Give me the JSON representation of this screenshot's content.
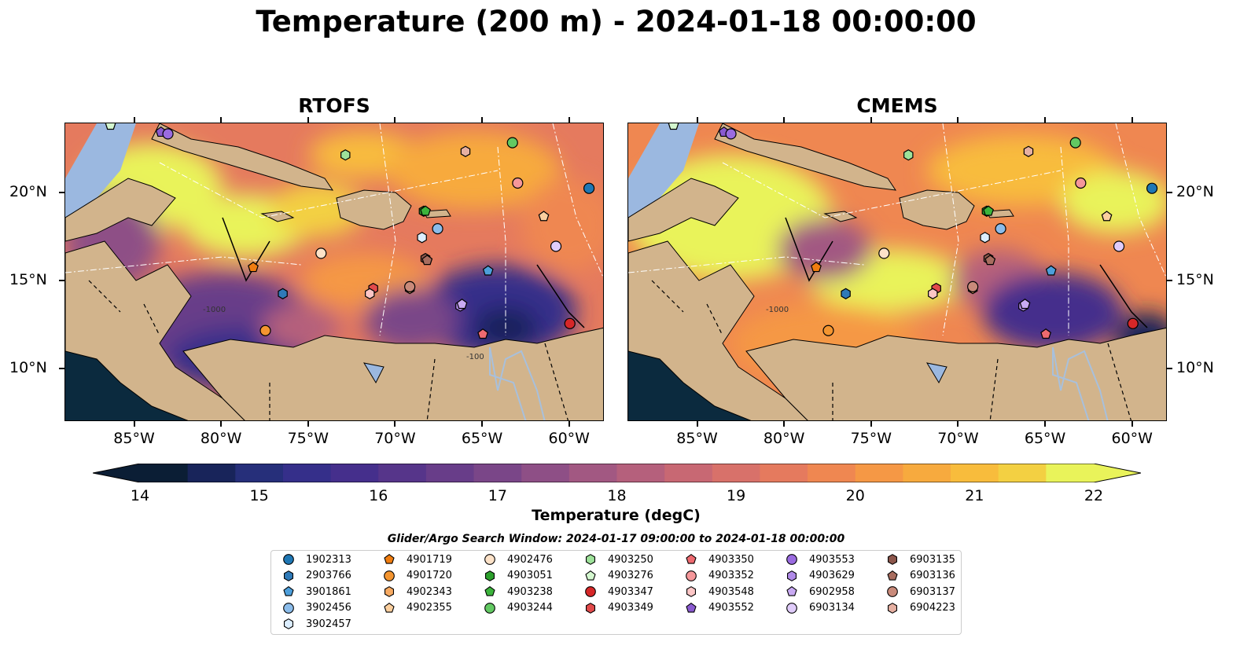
{
  "title": "Temperature (200 m) - 2024-01-18 00:00:00",
  "panels": [
    {
      "title": "RTOFS"
    },
    {
      "title": "CMEMS"
    }
  ],
  "axes": {
    "lon_labels": [
      "85°W",
      "80°W",
      "75°W",
      "70°W",
      "65°W",
      "60°W"
    ],
    "lat_labels": [
      "20°N",
      "15°N",
      "10°N"
    ],
    "lon_range": [
      -89,
      -58
    ],
    "lat_range": [
      7,
      24
    ]
  },
  "contour_labels": [
    "-100",
    "-1000",
    "-100",
    "-100"
  ],
  "colorbar": {
    "label": "Temperature (degC)",
    "tick_labels": [
      "14",
      "15",
      "16",
      "17",
      "18",
      "19",
      "20",
      "21",
      "22"
    ],
    "range": [
      14,
      22
    ],
    "colors": [
      "#0b1e35",
      "#18245a",
      "#262f7a",
      "#352f8a",
      "#452f8c",
      "#56358a",
      "#683d89",
      "#7a4688",
      "#8e4f86",
      "#a25882",
      "#b5607c",
      "#c86873",
      "#d8716a",
      "#e57a5e",
      "#ef8751",
      "#f59845",
      "#f7aa3e",
      "#f8bc3c",
      "#f3d042",
      "#e9f35a"
    ]
  },
  "search_window": "Glider/Argo Search Window: 2024-01-17 09:00:00 to 2024-01-18 00:00:00",
  "colors": {
    "land": "#d2b48c",
    "shelf": "#9bb8e0",
    "deep_pacific": "#0b2a3e",
    "river": "#a8c0dc"
  },
  "legend": [
    {
      "id": "1902313",
      "marker": "circle",
      "color": "#1f77b4"
    },
    {
      "id": "2903766",
      "marker": "hexagon",
      "color": "#2f7ab8"
    },
    {
      "id": "3901861",
      "marker": "pentagon",
      "color": "#4d9fdb"
    },
    {
      "id": "3902456",
      "marker": "circle",
      "color": "#8bbcea"
    },
    {
      "id": "3902457",
      "marker": "hexagon",
      "color": "#dceeff"
    },
    {
      "id": "4901719",
      "marker": "pentagon",
      "color": "#f07d10"
    },
    {
      "id": "4901720",
      "marker": "circle",
      "color": "#f49530"
    },
    {
      "id": "4902343",
      "marker": "hexagon",
      "color": "#f7aa62"
    },
    {
      "id": "4902355",
      "marker": "pentagon",
      "color": "#fbcf9e"
    },
    {
      "id": "4902476",
      "marker": "circle",
      "color": "#fde2c8"
    },
    {
      "id": "4903051",
      "marker": "hexagon",
      "color": "#2ca02c"
    },
    {
      "id": "4903238",
      "marker": "pentagon",
      "color": "#3cb43c"
    },
    {
      "id": "4903244",
      "marker": "circle",
      "color": "#62c962"
    },
    {
      "id": "4903250",
      "marker": "hexagon",
      "color": "#9ee29a"
    },
    {
      "id": "4903276",
      "marker": "pentagon",
      "color": "#d4f7cf"
    },
    {
      "id": "4903347",
      "marker": "circle",
      "color": "#d62728"
    },
    {
      "id": "4903349",
      "marker": "hexagon",
      "color": "#e24a4b"
    },
    {
      "id": "4903350",
      "marker": "pentagon",
      "color": "#ee6a70"
    },
    {
      "id": "4903352",
      "marker": "circle",
      "color": "#f5979a"
    },
    {
      "id": "4903548",
      "marker": "hexagon",
      "color": "#fcc6c6"
    },
    {
      "id": "4903552",
      "marker": "pentagon",
      "color": "#8a5ad0"
    },
    {
      "id": "4903553",
      "marker": "circle",
      "color": "#9a6be0"
    },
    {
      "id": "4903629",
      "marker": "hexagon",
      "color": "#b08ae8"
    },
    {
      "id": "6902958",
      "marker": "pentagon",
      "color": "#c9aaf3"
    },
    {
      "id": "6903134",
      "marker": "circle",
      "color": "#e0ccfa"
    },
    {
      "id": "6903135",
      "marker": "hexagon",
      "color": "#8c564b"
    },
    {
      "id": "6903136",
      "marker": "pentagon",
      "color": "#a86d5f"
    },
    {
      "id": "6903137",
      "marker": "circle",
      "color": "#c98a7a"
    },
    {
      "id": "6904223",
      "marker": "hexagon",
      "color": "#e6b0a2"
    }
  ],
  "float_positions": [
    {
      "id": "1902313",
      "lon": -58.9,
      "lat": 20.3
    },
    {
      "id": "2903766",
      "lon": -76.5,
      "lat": 14.3
    },
    {
      "id": "3901861",
      "lon": -64.7,
      "lat": 15.6
    },
    {
      "id": "3902456",
      "lon": -67.6,
      "lat": 18.0
    },
    {
      "id": "3902457",
      "lon": -68.5,
      "lat": 17.5
    },
    {
      "id": "4901719",
      "lon": -78.2,
      "lat": 15.8
    },
    {
      "id": "4901720",
      "lon": -77.5,
      "lat": 12.2
    },
    {
      "id": "4902343",
      "lon": -69.2,
      "lat": 14.6
    },
    {
      "id": "4902355",
      "lon": -61.5,
      "lat": 18.7
    },
    {
      "id": "4902476",
      "lon": -74.3,
      "lat": 16.6
    },
    {
      "id": "4903051",
      "lon": -68.4,
      "lat": 19.0
    },
    {
      "id": "4903238",
      "lon": -68.3,
      "lat": 19.0
    },
    {
      "id": "4903244",
      "lon": -63.3,
      "lat": 22.9
    },
    {
      "id": "4903250",
      "lon": -72.9,
      "lat": 22.2
    },
    {
      "id": "4903276",
      "lon": -86.4,
      "lat": 23.9
    },
    {
      "id": "4903347",
      "lon": -60.0,
      "lat": 12.6
    },
    {
      "id": "4903349",
      "lon": -71.3,
      "lat": 14.6
    },
    {
      "id": "4903350",
      "lon": -65.0,
      "lat": 12.0
    },
    {
      "id": "4903352",
      "lon": -63.0,
      "lat": 20.6
    },
    {
      "id": "4903548",
      "lon": -71.5,
      "lat": 14.3
    },
    {
      "id": "4903552",
      "lon": -83.5,
      "lat": 23.5
    },
    {
      "id": "4903553",
      "lon": -83.1,
      "lat": 23.4
    },
    {
      "id": "4903629",
      "lon": -66.3,
      "lat": 13.6
    },
    {
      "id": "6902958",
      "lon": -66.2,
      "lat": 13.7
    },
    {
      "id": "6903134",
      "lon": -60.8,
      "lat": 17.0
    },
    {
      "id": "6903135",
      "lon": -68.3,
      "lat": 16.3
    },
    {
      "id": "6903136",
      "lon": -68.2,
      "lat": 16.2
    },
    {
      "id": "6903137",
      "lon": -69.2,
      "lat": 14.7
    },
    {
      "id": "6904223",
      "lon": -66.0,
      "lat": 22.4
    }
  ]
}
